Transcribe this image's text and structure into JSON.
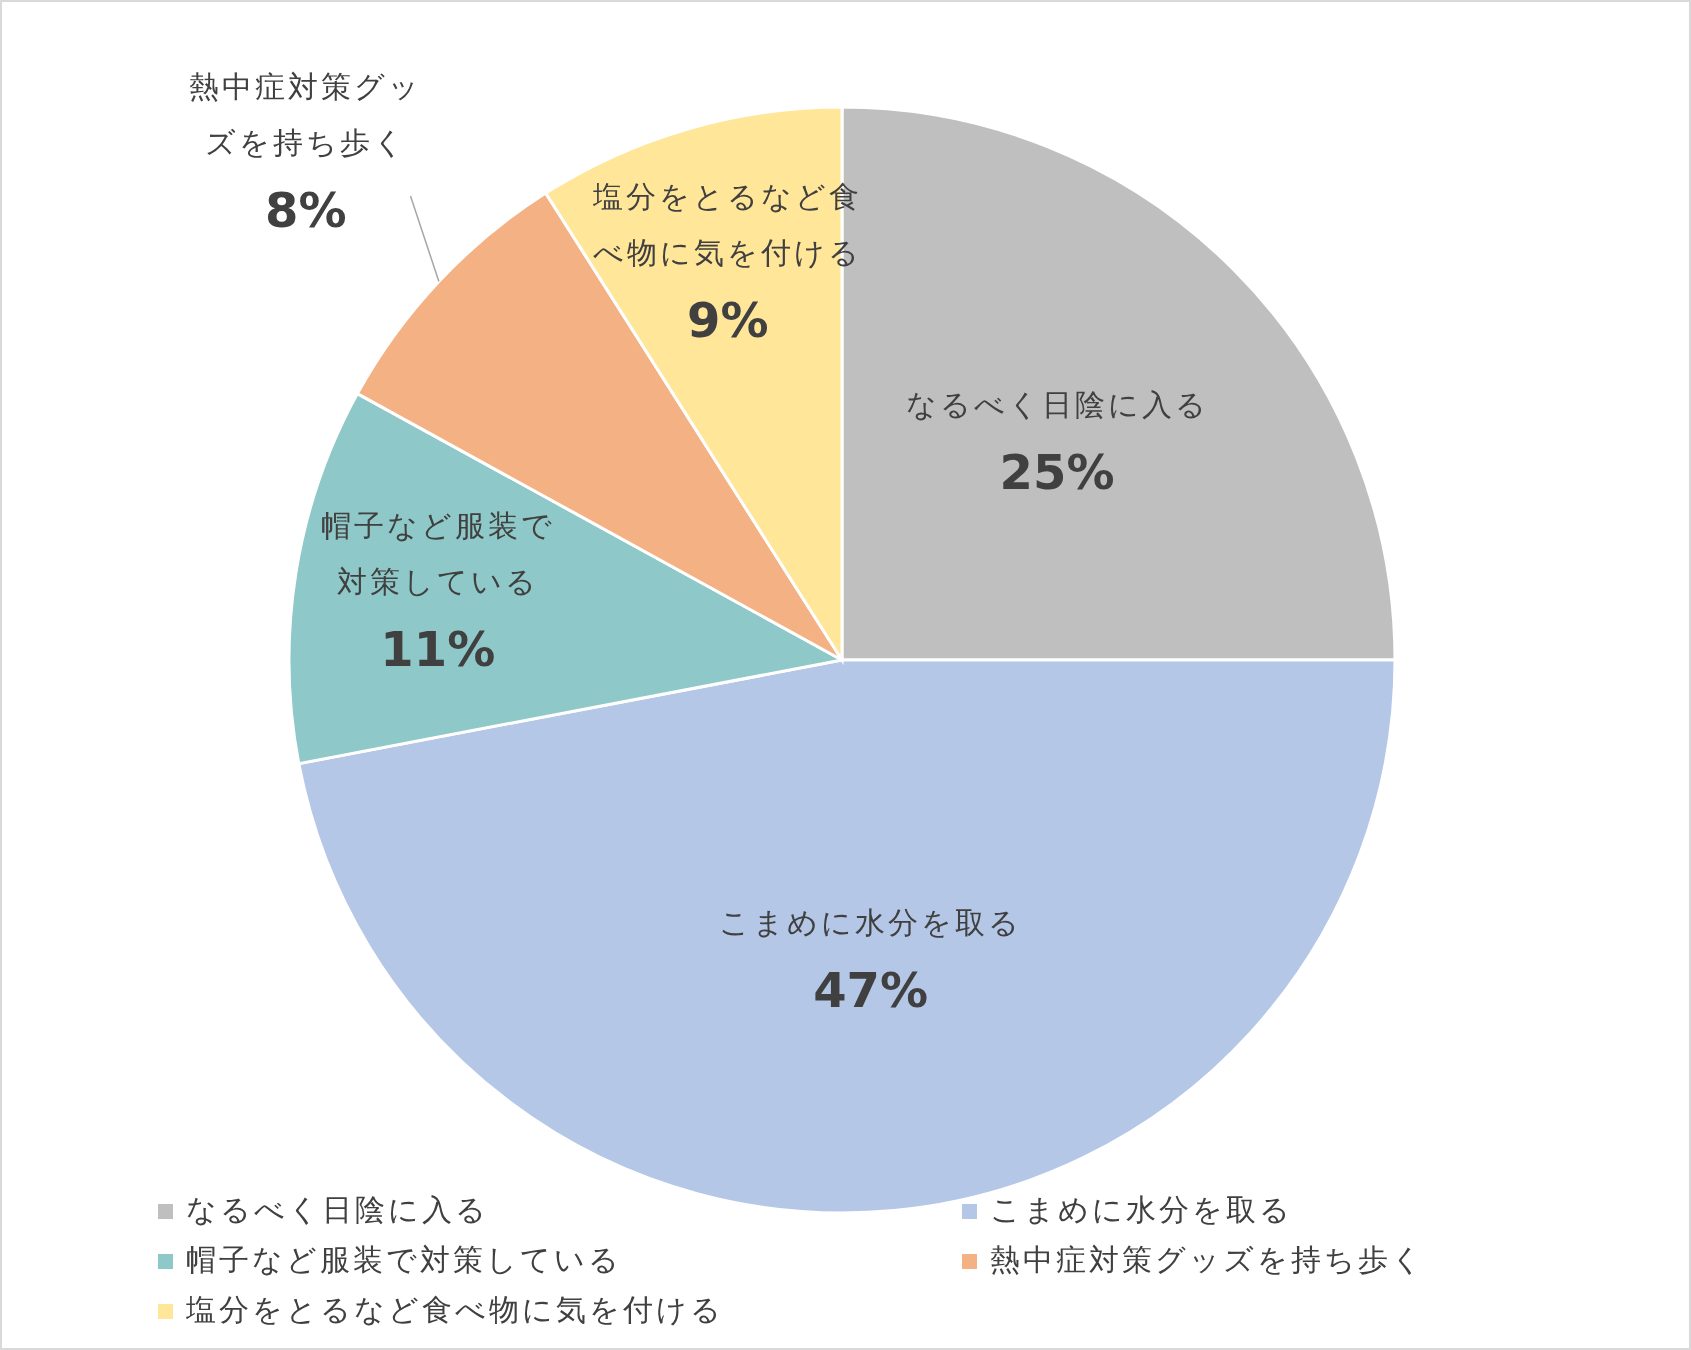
{
  "chart_data": {
    "type": "pie",
    "categories": [
      "なるべく日陰に入る",
      "こまめに水分を取る",
      "帽子など服装で対策している",
      "熱中症対策グッズを持ち歩く",
      "塩分をとるなど食べ物に気を付ける"
    ],
    "values": [
      25,
      47,
      11,
      8,
      9
    ],
    "colors": [
      "#bfbfbf",
      "#b4c7e7",
      "#8fc8c8",
      "#f4b183",
      "#ffe699"
    ],
    "value_labels": [
      "25%",
      "47%",
      "11%",
      "8%",
      "9%"
    ],
    "legend": "bottom"
  }
}
